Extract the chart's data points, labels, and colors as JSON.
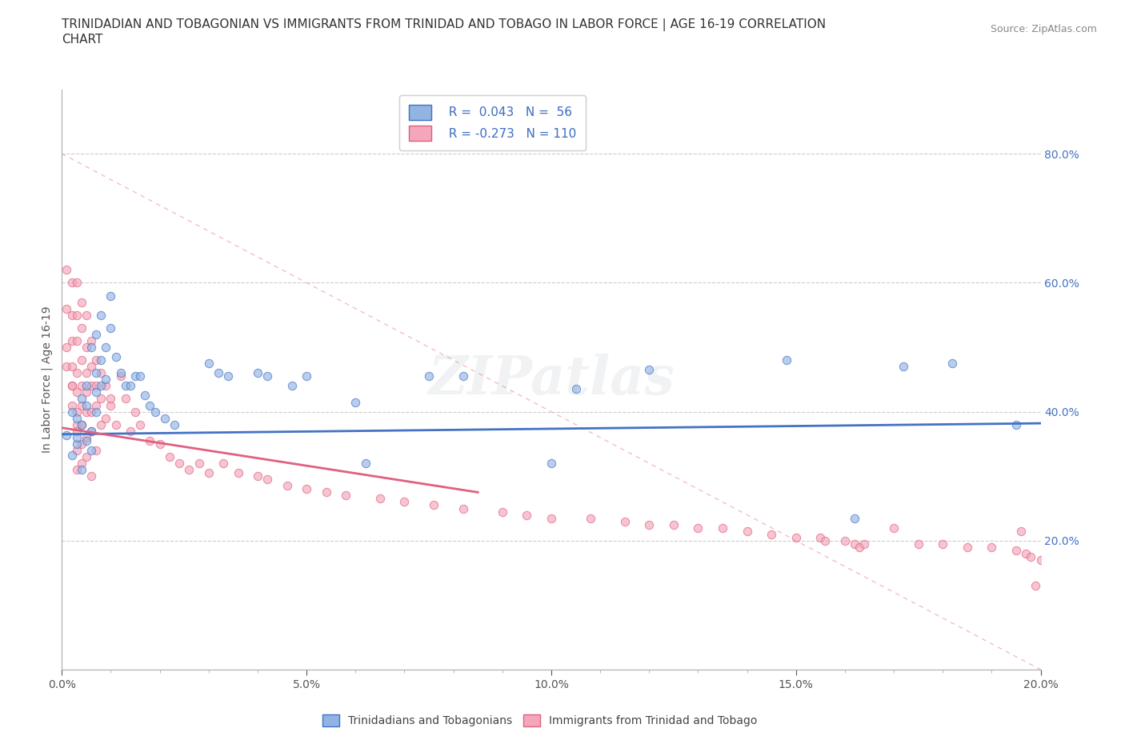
{
  "title_line1": "TRINIDADIAN AND TOBAGONIAN VS IMMIGRANTS FROM TRINIDAD AND TOBAGO IN LABOR FORCE | AGE 16-19 CORRELATION",
  "title_line2": "CHART",
  "source_text": "Source: ZipAtlas.com",
  "ylabel": "In Labor Force | Age 16-19",
  "xlim": [
    0.0,
    0.2
  ],
  "ylim": [
    0.0,
    0.9
  ],
  "xtick_labels": [
    "0.0%",
    "",
    "",
    "",
    "",
    "5.0%",
    "",
    "",
    "",
    "",
    "10.0%",
    "",
    "",
    "",
    "",
    "15.0%",
    "",
    "",
    "",
    "",
    "20.0%"
  ],
  "xtick_vals": [
    0.0,
    0.01,
    0.02,
    0.03,
    0.04,
    0.05,
    0.06,
    0.07,
    0.08,
    0.09,
    0.1,
    0.11,
    0.12,
    0.13,
    0.14,
    0.15,
    0.16,
    0.17,
    0.18,
    0.19,
    0.2
  ],
  "xtick_major_labels": [
    "0.0%",
    "5.0%",
    "10.0%",
    "15.0%",
    "20.0%"
  ],
  "xtick_major_vals": [
    0.0,
    0.05,
    0.1,
    0.15,
    0.2
  ],
  "ytick_labels": [
    "20.0%",
    "40.0%",
    "60.0%",
    "80.0%"
  ],
  "ytick_vals": [
    0.2,
    0.4,
    0.6,
    0.8
  ],
  "watermark": "ZIPatlas",
  "color_blue": "#92b4e3",
  "color_pink": "#f4a7b9",
  "line_blue": "#4472c4",
  "line_pink": "#e06080",
  "line_dashed_color": "#f0a0b0",
  "blue_points": [
    [
      0.001,
      0.364
    ],
    [
      0.002,
      0.333
    ],
    [
      0.002,
      0.4
    ],
    [
      0.003,
      0.35
    ],
    [
      0.003,
      0.39
    ],
    [
      0.003,
      0.36
    ],
    [
      0.004,
      0.31
    ],
    [
      0.004,
      0.42
    ],
    [
      0.004,
      0.38
    ],
    [
      0.005,
      0.355
    ],
    [
      0.005,
      0.44
    ],
    [
      0.005,
      0.41
    ],
    [
      0.006,
      0.37
    ],
    [
      0.006,
      0.34
    ],
    [
      0.006,
      0.5
    ],
    [
      0.007,
      0.46
    ],
    [
      0.007,
      0.43
    ],
    [
      0.007,
      0.4
    ],
    [
      0.007,
      0.52
    ],
    [
      0.008,
      0.48
    ],
    [
      0.008,
      0.44
    ],
    [
      0.008,
      0.55
    ],
    [
      0.009,
      0.5
    ],
    [
      0.009,
      0.45
    ],
    [
      0.01,
      0.58
    ],
    [
      0.01,
      0.53
    ],
    [
      0.011,
      0.485
    ],
    [
      0.012,
      0.46
    ],
    [
      0.013,
      0.44
    ],
    [
      0.014,
      0.44
    ],
    [
      0.015,
      0.455
    ],
    [
      0.016,
      0.455
    ],
    [
      0.017,
      0.425
    ],
    [
      0.018,
      0.41
    ],
    [
      0.019,
      0.4
    ],
    [
      0.021,
      0.39
    ],
    [
      0.023,
      0.38
    ],
    [
      0.03,
      0.475
    ],
    [
      0.032,
      0.46
    ],
    [
      0.034,
      0.455
    ],
    [
      0.04,
      0.46
    ],
    [
      0.042,
      0.455
    ],
    [
      0.047,
      0.44
    ],
    [
      0.05,
      0.455
    ],
    [
      0.06,
      0.415
    ],
    [
      0.062,
      0.32
    ],
    [
      0.075,
      0.455
    ],
    [
      0.082,
      0.455
    ],
    [
      0.1,
      0.32
    ],
    [
      0.105,
      0.435
    ],
    [
      0.12,
      0.465
    ],
    [
      0.148,
      0.48
    ],
    [
      0.162,
      0.235
    ],
    [
      0.172,
      0.47
    ],
    [
      0.182,
      0.475
    ],
    [
      0.195,
      0.38
    ]
  ],
  "pink_points": [
    [
      0.001,
      0.62
    ],
    [
      0.001,
      0.56
    ],
    [
      0.001,
      0.5
    ],
    [
      0.001,
      0.47
    ],
    [
      0.002,
      0.44
    ],
    [
      0.002,
      0.6
    ],
    [
      0.002,
      0.55
    ],
    [
      0.002,
      0.51
    ],
    [
      0.002,
      0.47
    ],
    [
      0.002,
      0.44
    ],
    [
      0.002,
      0.41
    ],
    [
      0.003,
      0.38
    ],
    [
      0.003,
      0.6
    ],
    [
      0.003,
      0.55
    ],
    [
      0.003,
      0.51
    ],
    [
      0.003,
      0.46
    ],
    [
      0.003,
      0.43
    ],
    [
      0.003,
      0.4
    ],
    [
      0.003,
      0.37
    ],
    [
      0.003,
      0.34
    ],
    [
      0.003,
      0.31
    ],
    [
      0.004,
      0.57
    ],
    [
      0.004,
      0.53
    ],
    [
      0.004,
      0.48
    ],
    [
      0.004,
      0.44
    ],
    [
      0.004,
      0.41
    ],
    [
      0.004,
      0.38
    ],
    [
      0.004,
      0.35
    ],
    [
      0.004,
      0.32
    ],
    [
      0.005,
      0.55
    ],
    [
      0.005,
      0.5
    ],
    [
      0.005,
      0.46
    ],
    [
      0.005,
      0.43
    ],
    [
      0.005,
      0.4
    ],
    [
      0.005,
      0.36
    ],
    [
      0.005,
      0.33
    ],
    [
      0.006,
      0.3
    ],
    [
      0.006,
      0.51
    ],
    [
      0.006,
      0.47
    ],
    [
      0.006,
      0.44
    ],
    [
      0.006,
      0.4
    ],
    [
      0.006,
      0.37
    ],
    [
      0.007,
      0.34
    ],
    [
      0.007,
      0.48
    ],
    [
      0.007,
      0.44
    ],
    [
      0.007,
      0.41
    ],
    [
      0.008,
      0.38
    ],
    [
      0.008,
      0.46
    ],
    [
      0.008,
      0.42
    ],
    [
      0.009,
      0.39
    ],
    [
      0.009,
      0.44
    ],
    [
      0.01,
      0.41
    ],
    [
      0.01,
      0.42
    ],
    [
      0.011,
      0.38
    ],
    [
      0.012,
      0.455
    ],
    [
      0.013,
      0.42
    ],
    [
      0.014,
      0.37
    ],
    [
      0.015,
      0.4
    ],
    [
      0.016,
      0.38
    ],
    [
      0.018,
      0.355
    ],
    [
      0.02,
      0.35
    ],
    [
      0.022,
      0.33
    ],
    [
      0.024,
      0.32
    ],
    [
      0.026,
      0.31
    ],
    [
      0.028,
      0.32
    ],
    [
      0.03,
      0.305
    ],
    [
      0.033,
      0.32
    ],
    [
      0.036,
      0.305
    ],
    [
      0.04,
      0.3
    ],
    [
      0.042,
      0.295
    ],
    [
      0.046,
      0.285
    ],
    [
      0.05,
      0.28
    ],
    [
      0.054,
      0.275
    ],
    [
      0.058,
      0.27
    ],
    [
      0.065,
      0.265
    ],
    [
      0.07,
      0.26
    ],
    [
      0.076,
      0.255
    ],
    [
      0.082,
      0.25
    ],
    [
      0.09,
      0.245
    ],
    [
      0.095,
      0.24
    ],
    [
      0.1,
      0.235
    ],
    [
      0.108,
      0.235
    ],
    [
      0.115,
      0.23
    ],
    [
      0.12,
      0.225
    ],
    [
      0.125,
      0.225
    ],
    [
      0.13,
      0.22
    ],
    [
      0.135,
      0.22
    ],
    [
      0.14,
      0.215
    ],
    [
      0.145,
      0.21
    ],
    [
      0.15,
      0.205
    ],
    [
      0.155,
      0.205
    ],
    [
      0.156,
      0.2
    ],
    [
      0.16,
      0.2
    ],
    [
      0.162,
      0.195
    ],
    [
      0.163,
      0.19
    ],
    [
      0.164,
      0.195
    ],
    [
      0.17,
      0.22
    ],
    [
      0.175,
      0.195
    ],
    [
      0.18,
      0.195
    ],
    [
      0.185,
      0.19
    ],
    [
      0.19,
      0.19
    ],
    [
      0.195,
      0.185
    ],
    [
      0.196,
      0.215
    ],
    [
      0.197,
      0.18
    ],
    [
      0.198,
      0.175
    ],
    [
      0.199,
      0.13
    ],
    [
      0.2,
      0.17
    ]
  ],
  "blue_line_x": [
    0.0,
    0.2
  ],
  "blue_line_y": [
    0.365,
    0.382
  ],
  "pink_line_x": [
    0.0,
    0.085
  ],
  "pink_line_y": [
    0.375,
    0.275
  ],
  "dashed_line_x": [
    0.0,
    0.2
  ],
  "dashed_line_y": [
    0.8,
    0.0
  ],
  "title_fontsize": 11,
  "axis_label_fontsize": 10,
  "tick_fontsize": 10,
  "watermark_fontsize": 48,
  "watermark_alpha": 0.12,
  "scatter_size": 55,
  "scatter_alpha": 0.65,
  "scatter_linewidth": 0.8
}
